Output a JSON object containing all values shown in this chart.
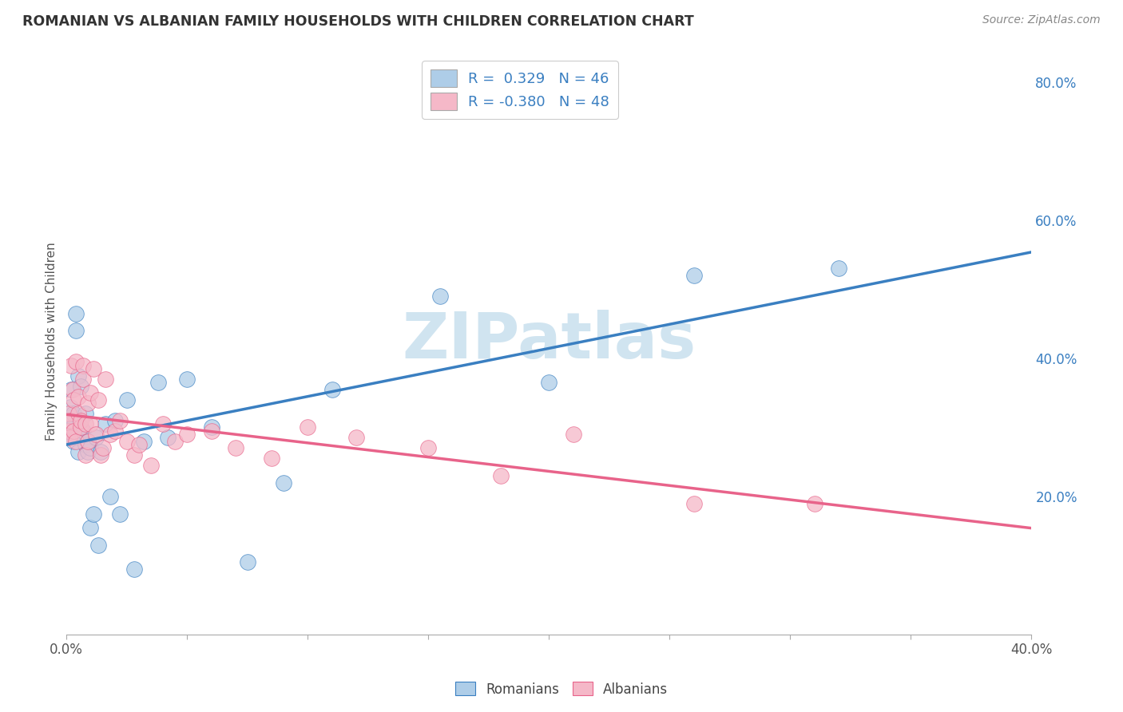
{
  "title": "ROMANIAN VS ALBANIAN FAMILY HOUSEHOLDS WITH CHILDREN CORRELATION CHART",
  "source": "Source: ZipAtlas.com",
  "ylabel": "Family Households with Children",
  "x_min": 0.0,
  "x_max": 0.4,
  "y_min": 0.0,
  "y_max": 0.85,
  "y_ticks_right": [
    0.2,
    0.4,
    0.6,
    0.8
  ],
  "y_tick_labels_right": [
    "20.0%",
    "40.0%",
    "60.0%",
    "80.0%"
  ],
  "legend_color1": "#aecde8",
  "legend_color2": "#f5b8c8",
  "scatter_color_romanian": "#aecde8",
  "scatter_color_albanian": "#f5b8c8",
  "line_color_romanian": "#3a7fc1",
  "line_color_albanian": "#e8638a",
  "watermark": "ZIPatlas",
  "watermark_color": "#d0e4f0",
  "rom_R": 0.329,
  "rom_N": 46,
  "alb_R": -0.38,
  "alb_N": 48,
  "romanians_x": [
    0.0008,
    0.001,
    0.0012,
    0.0015,
    0.002,
    0.002,
    0.0025,
    0.003,
    0.003,
    0.0035,
    0.004,
    0.004,
    0.005,
    0.005,
    0.006,
    0.006,
    0.007,
    0.007,
    0.008,
    0.008,
    0.009,
    0.009,
    0.01,
    0.01,
    0.011,
    0.012,
    0.013,
    0.014,
    0.016,
    0.018,
    0.02,
    0.022,
    0.025,
    0.028,
    0.032,
    0.038,
    0.042,
    0.05,
    0.06,
    0.075,
    0.09,
    0.11,
    0.155,
    0.2,
    0.26,
    0.32
  ],
  "romanians_y": [
    0.285,
    0.295,
    0.31,
    0.33,
    0.285,
    0.355,
    0.3,
    0.28,
    0.32,
    0.29,
    0.465,
    0.44,
    0.375,
    0.265,
    0.3,
    0.36,
    0.285,
    0.295,
    0.32,
    0.275,
    0.265,
    0.28,
    0.27,
    0.155,
    0.175,
    0.285,
    0.13,
    0.265,
    0.305,
    0.2,
    0.31,
    0.175,
    0.34,
    0.095,
    0.28,
    0.365,
    0.285,
    0.37,
    0.3,
    0.105,
    0.22,
    0.355,
    0.49,
    0.365,
    0.52,
    0.53
  ],
  "albanians_x": [
    0.0008,
    0.001,
    0.0012,
    0.0015,
    0.002,
    0.0025,
    0.003,
    0.003,
    0.004,
    0.004,
    0.005,
    0.005,
    0.006,
    0.006,
    0.007,
    0.007,
    0.008,
    0.008,
    0.009,
    0.009,
    0.01,
    0.01,
    0.011,
    0.012,
    0.013,
    0.014,
    0.015,
    0.016,
    0.018,
    0.02,
    0.022,
    0.025,
    0.028,
    0.03,
    0.035,
    0.04,
    0.045,
    0.05,
    0.06,
    0.07,
    0.085,
    0.1,
    0.12,
    0.15,
    0.18,
    0.21,
    0.26,
    0.31
  ],
  "albanians_y": [
    0.295,
    0.32,
    0.285,
    0.31,
    0.39,
    0.355,
    0.295,
    0.34,
    0.395,
    0.28,
    0.32,
    0.345,
    0.3,
    0.31,
    0.39,
    0.37,
    0.305,
    0.26,
    0.335,
    0.28,
    0.305,
    0.35,
    0.385,
    0.29,
    0.34,
    0.26,
    0.27,
    0.37,
    0.29,
    0.295,
    0.31,
    0.28,
    0.26,
    0.275,
    0.245,
    0.305,
    0.28,
    0.29,
    0.295,
    0.27,
    0.255,
    0.3,
    0.285,
    0.27,
    0.23,
    0.29,
    0.19,
    0.19
  ]
}
